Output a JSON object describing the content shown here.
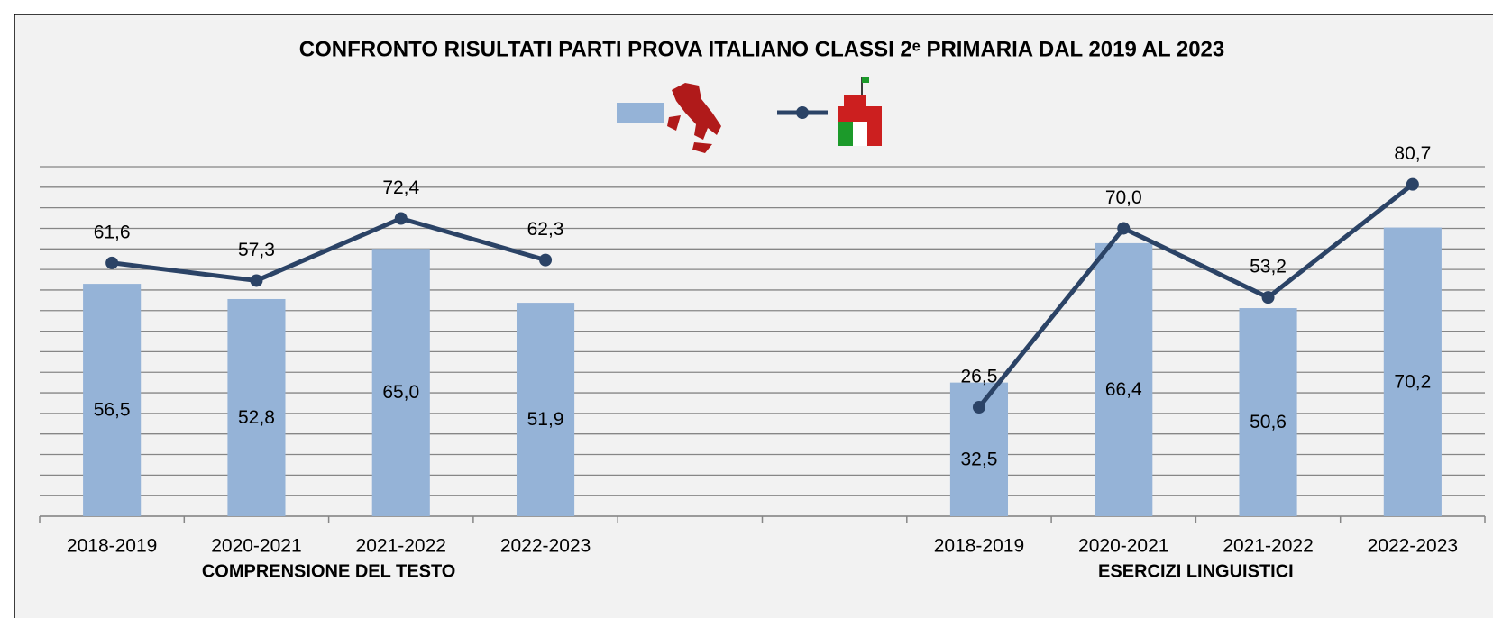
{
  "chart_data": {
    "type": "bar_line",
    "title": "CONFRONTO RISULTATI PARTI PROVA ITALIANO CLASSI 2ᵉ PRIMARIA DAL 2019 AL 2023",
    "categories": [
      "2018-2019",
      "2020-2021",
      "2021-2022",
      "2022-2023",
      null,
      null,
      "2018-2019",
      "2020-2021",
      "2021-2022",
      "2022-2023"
    ],
    "group_labels": [
      "COMPRENSIONE DEL TESTO",
      "ESERCIZI LINGUISTICI"
    ],
    "series": [
      {
        "type": "bar",
        "color": "#95b3d7",
        "values": [
          56.5,
          52.8,
          65.0,
          51.9,
          null,
          null,
          32.5,
          66.4,
          50.6,
          70.2
        ],
        "value_labels": [
          "56,5",
          "52,8",
          "65,0",
          "51,9",
          null,
          null,
          "32,5",
          "66,4",
          "50,6",
          "70,2"
        ]
      },
      {
        "type": "line",
        "color": "#2b4366",
        "values": [
          61.6,
          57.3,
          72.4,
          62.3,
          null,
          null,
          26.5,
          70.0,
          53.2,
          80.7
        ],
        "value_labels": [
          "61,6",
          "57,3",
          "72,4",
          "62,3",
          null,
          null,
          "26,5",
          "70,0",
          "53,2",
          "80,7"
        ]
      }
    ],
    "ylim": [
      0,
      85
    ],
    "yticks": [
      0,
      5,
      10,
      15,
      20,
      25,
      30,
      35,
      40,
      45,
      50,
      55,
      60,
      65,
      70,
      75,
      80,
      85
    ],
    "grid": true
  }
}
